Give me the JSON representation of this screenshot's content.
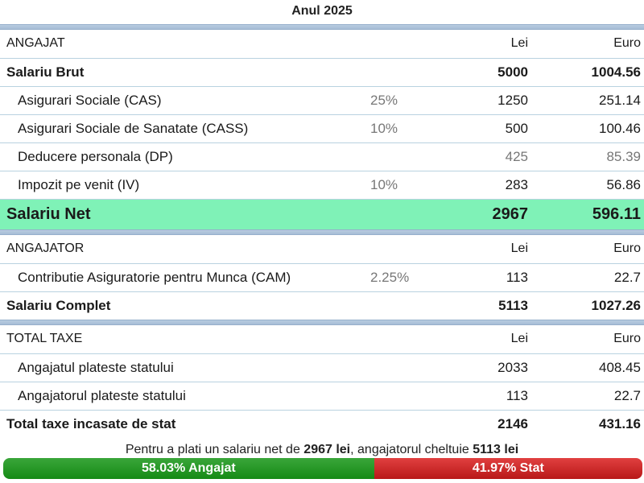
{
  "year_title": "Anul 2025",
  "employee": {
    "header": {
      "label": "ANGAJAT",
      "lei": "Lei",
      "euro": "Euro"
    },
    "rows": [
      {
        "label": "Salariu Brut",
        "pct": "",
        "lei": "5000",
        "euro": "1004.56",
        "style": "bold"
      },
      {
        "label": "Asigurari Sociale (CAS)",
        "pct": "25%",
        "lei": "1250",
        "euro": "251.14",
        "style": "indent"
      },
      {
        "label": "Asigurari Sociale de Sanatate (CASS)",
        "pct": "10%",
        "lei": "500",
        "euro": "100.46",
        "style": "indent"
      },
      {
        "label": "Deducere personala (DP)",
        "pct": "",
        "lei": "425",
        "euro": "85.39",
        "style": "indent grey"
      },
      {
        "label": "Impozit pe venit (IV)",
        "pct": "10%",
        "lei": "283",
        "euro": "56.86",
        "style": "indent"
      }
    ],
    "net": {
      "label": "Salariu Net",
      "lei": "2967",
      "euro": "596.11"
    }
  },
  "employer": {
    "header": {
      "label": "ANGAJATOR",
      "lei": "Lei",
      "euro": "Euro"
    },
    "rows": [
      {
        "label": "Contributie Asiguratorie pentru Munca (CAM)",
        "pct": "2.25%",
        "lei": "113",
        "euro": "22.7",
        "style": "indent"
      },
      {
        "label": "Salariu Complet",
        "pct": "",
        "lei": "5113",
        "euro": "1027.26",
        "style": "bold"
      }
    ]
  },
  "taxes": {
    "header": {
      "label": "TOTAL TAXE",
      "lei": "Lei",
      "euro": "Euro"
    },
    "rows": [
      {
        "label": "Angajatul plateste statului",
        "pct": "",
        "lei": "2033",
        "euro": "408.45",
        "style": "indent"
      },
      {
        "label": "Angajatorul plateste statului",
        "pct": "",
        "lei": "113",
        "euro": "22.7",
        "style": "indent"
      },
      {
        "label": "Total taxe incasate de stat",
        "pct": "",
        "lei": "2146",
        "euro": "431.16",
        "style": "bold"
      }
    ]
  },
  "summary": {
    "part1": "Pentru a plati un salariu net de ",
    "net_value": "2967 lei",
    "part2": ", angajatorul cheltuie ",
    "total_value": "5113 lei"
  },
  "split": {
    "employee_share": 0.5803,
    "employee_label": "58.03% Angajat",
    "state_label": "41.97% Stat",
    "employee_color": "#1f8f1f",
    "state_color": "#c92222"
  }
}
